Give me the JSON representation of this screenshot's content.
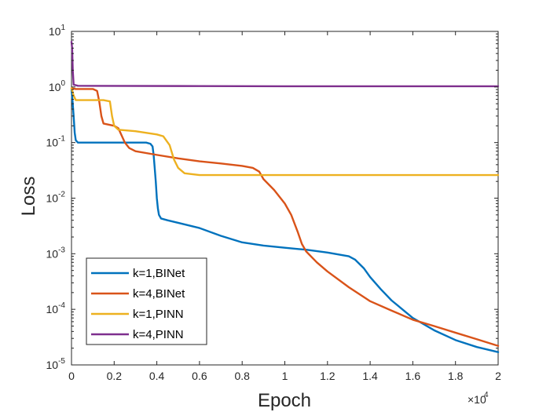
{
  "chart_data": {
    "type": "line",
    "title": "",
    "xlabel": "Epoch",
    "ylabel": "Loss",
    "x_multiplier_label": "×10",
    "x_multiplier_exp": "4",
    "xlim": [
      0,
      2
    ],
    "ylim": [
      1e-05,
      10
    ],
    "yscale": "log",
    "grid": false,
    "legend_position": "bottom-left",
    "x_ticks": [
      "0",
      "0.2",
      "0.4",
      "0.6",
      "0.8",
      "1",
      "1.2",
      "1.4",
      "1.6",
      "1.8",
      "2"
    ],
    "y_ticks": [
      {
        "base": "10",
        "exp": "-5",
        "value": 1e-05
      },
      {
        "base": "10",
        "exp": "-4",
        "value": 0.0001
      },
      {
        "base": "10",
        "exp": "-3",
        "value": 0.001
      },
      {
        "base": "10",
        "exp": "-2",
        "value": 0.01
      },
      {
        "base": "10",
        "exp": "-1",
        "value": 0.1
      },
      {
        "base": "10",
        "exp": "0",
        "value": 1
      },
      {
        "base": "10",
        "exp": "1",
        "value": 10
      }
    ],
    "series": [
      {
        "name": "k=1,BINet",
        "color": "#0072BD",
        "points": [
          [
            0,
            0.9
          ],
          [
            0.005,
            0.55
          ],
          [
            0.01,
            0.3
          ],
          [
            0.015,
            0.15
          ],
          [
            0.02,
            0.11
          ],
          [
            0.03,
            0.1
          ],
          [
            0.1,
            0.1
          ],
          [
            0.2,
            0.1
          ],
          [
            0.3,
            0.1
          ],
          [
            0.35,
            0.1
          ],
          [
            0.37,
            0.095
          ],
          [
            0.38,
            0.085
          ],
          [
            0.385,
            0.06
          ],
          [
            0.39,
            0.035
          ],
          [
            0.395,
            0.02
          ],
          [
            0.4,
            0.01
          ],
          [
            0.405,
            0.0065
          ],
          [
            0.41,
            0.005
          ],
          [
            0.42,
            0.0043
          ],
          [
            0.45,
            0.004
          ],
          [
            0.5,
            0.0036
          ],
          [
            0.6,
            0.0029
          ],
          [
            0.7,
            0.0021
          ],
          [
            0.8,
            0.0016
          ],
          [
            0.9,
            0.0014
          ],
          [
            1.0,
            0.00128
          ],
          [
            1.1,
            0.00118
          ],
          [
            1.2,
            0.00105
          ],
          [
            1.3,
            0.0009
          ],
          [
            1.33,
            0.00078
          ],
          [
            1.37,
            0.00055
          ],
          [
            1.4,
            0.00038
          ],
          [
            1.45,
            0.00023
          ],
          [
            1.5,
            0.000145
          ],
          [
            1.6,
            7e-05
          ],
          [
            1.7,
            4.2e-05
          ],
          [
            1.8,
            2.8e-05
          ],
          [
            1.9,
            2.1e-05
          ],
          [
            2.0,
            1.7e-05
          ]
        ]
      },
      {
        "name": "k=4,BINet",
        "color": "#D95319",
        "points": [
          [
            0,
            0.95
          ],
          [
            0.02,
            0.92
          ],
          [
            0.1,
            0.92
          ],
          [
            0.12,
            0.85
          ],
          [
            0.13,
            0.55
          ],
          [
            0.14,
            0.3
          ],
          [
            0.15,
            0.22
          ],
          [
            0.2,
            0.2
          ],
          [
            0.22,
            0.18
          ],
          [
            0.25,
            0.1
          ],
          [
            0.27,
            0.08
          ],
          [
            0.3,
            0.07
          ],
          [
            0.4,
            0.06
          ],
          [
            0.5,
            0.052
          ],
          [
            0.6,
            0.046
          ],
          [
            0.7,
            0.042
          ],
          [
            0.8,
            0.038
          ],
          [
            0.85,
            0.035
          ],
          [
            0.88,
            0.03
          ],
          [
            0.9,
            0.022
          ],
          [
            0.95,
            0.014
          ],
          [
            1.0,
            0.008
          ],
          [
            1.03,
            0.005
          ],
          [
            1.06,
            0.0025
          ],
          [
            1.08,
            0.0015
          ],
          [
            1.1,
            0.0011
          ],
          [
            1.15,
            0.0007
          ],
          [
            1.2,
            0.00048
          ],
          [
            1.3,
            0.00025
          ],
          [
            1.4,
            0.00014
          ],
          [
            1.5,
            9.5e-05
          ],
          [
            1.6,
            6.5e-05
          ],
          [
            1.7,
            5e-05
          ],
          [
            1.8,
            3.8e-05
          ],
          [
            1.9,
            2.9e-05
          ],
          [
            2.0,
            2.2e-05
          ]
        ]
      },
      {
        "name": "k=1,PINN",
        "color": "#EDB120",
        "points": [
          [
            0,
            0.95
          ],
          [
            0.01,
            0.7
          ],
          [
            0.02,
            0.58
          ],
          [
            0.15,
            0.58
          ],
          [
            0.18,
            0.55
          ],
          [
            0.19,
            0.3
          ],
          [
            0.2,
            0.2
          ],
          [
            0.22,
            0.17
          ],
          [
            0.3,
            0.16
          ],
          [
            0.4,
            0.14
          ],
          [
            0.43,
            0.13
          ],
          [
            0.46,
            0.09
          ],
          [
            0.48,
            0.05
          ],
          [
            0.5,
            0.035
          ],
          [
            0.53,
            0.028
          ],
          [
            0.6,
            0.026
          ],
          [
            0.8,
            0.026
          ],
          [
            1.0,
            0.026
          ],
          [
            1.5,
            0.026
          ],
          [
            2.0,
            0.026
          ]
        ]
      },
      {
        "name": "k=4,PINN",
        "color": "#7E2F8E",
        "points": [
          [
            0,
            6.5
          ],
          [
            0.003,
            5
          ],
          [
            0.006,
            2
          ],
          [
            0.01,
            1.1
          ],
          [
            0.03,
            1.05
          ],
          [
            0.5,
            1.04
          ],
          [
            1.0,
            1.03
          ],
          [
            1.5,
            1.03
          ],
          [
            2.0,
            1.03
          ]
        ]
      }
    ]
  }
}
